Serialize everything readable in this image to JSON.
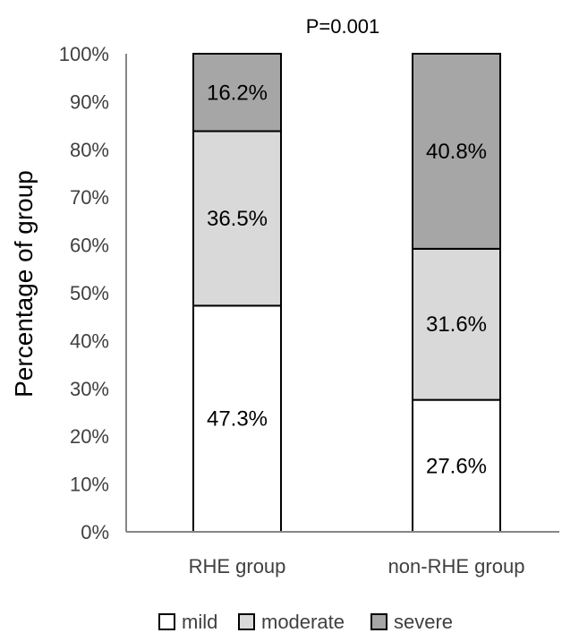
{
  "chart_data": {
    "type": "bar",
    "stacked": true,
    "title": "P=0.001",
    "ylabel": "Percentage of group",
    "xlabel": "",
    "ylim": [
      0,
      100
    ],
    "yticks": [
      "0%",
      "10%",
      "20%",
      "30%",
      "40%",
      "50%",
      "60%",
      "70%",
      "80%",
      "90%",
      "100%"
    ],
    "categories": [
      "RHE group",
      "non-RHE group"
    ],
    "series": [
      {
        "name": "mild",
        "values": [
          47.3,
          27.6
        ],
        "labels": [
          "47.3%",
          "27.6%"
        ],
        "color": "#ffffff"
      },
      {
        "name": "moderate",
        "values": [
          36.5,
          31.6
        ],
        "labels": [
          "36.5%",
          "31.6%"
        ],
        "color": "#d9d9d9"
      },
      {
        "name": "severe",
        "values": [
          16.2,
          40.8
        ],
        "labels": [
          "16.2%",
          "40.8%"
        ],
        "color": "#a6a6a6"
      }
    ],
    "grid": false,
    "legend_position": "bottom"
  }
}
